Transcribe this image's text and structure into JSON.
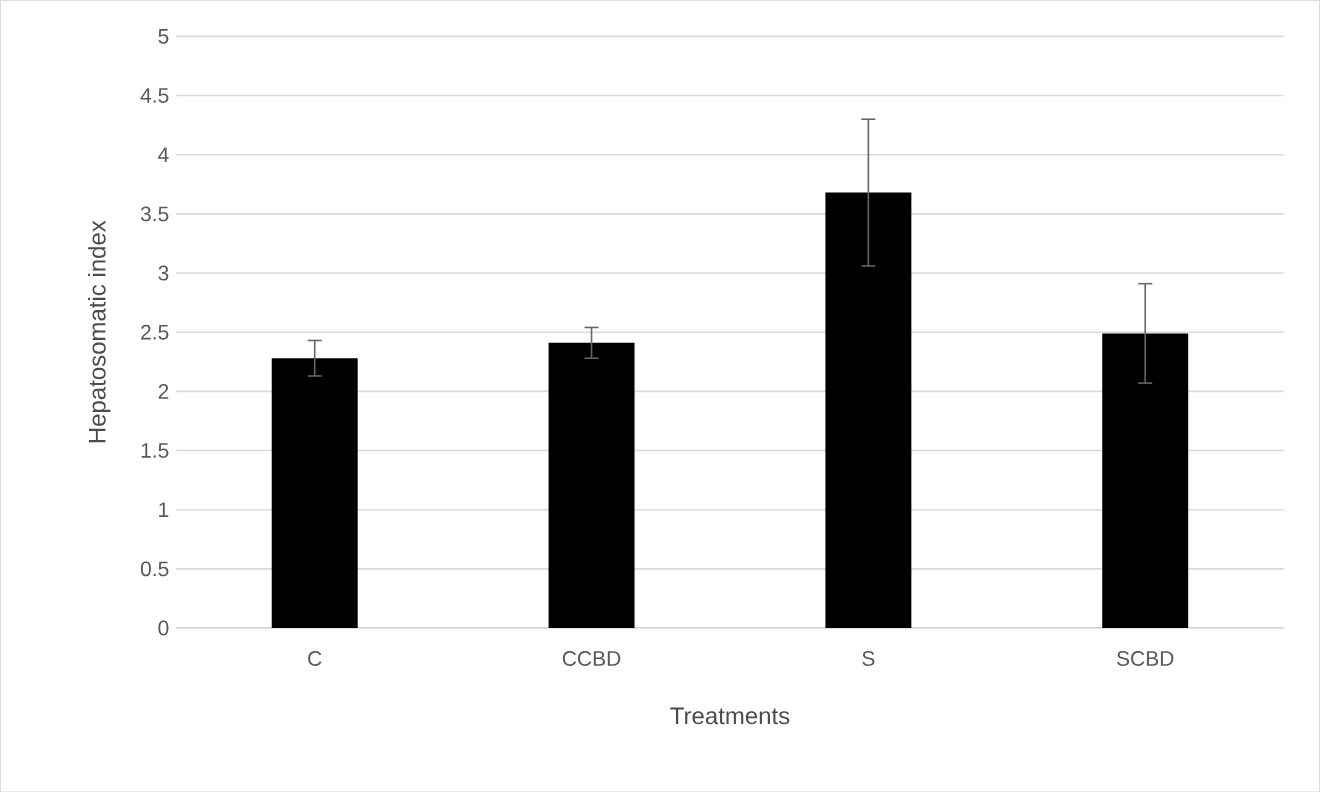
{
  "chart_data": {
    "type": "bar",
    "xlabel": "Treatments",
    "ylabel": "Hepatosomatic index",
    "categories": [
      "C",
      "CCBD",
      "S",
      "SCBD"
    ],
    "values": [
      2.28,
      2.41,
      3.68,
      2.49
    ],
    "errors": [
      0.15,
      0.13,
      0.62,
      0.42
    ],
    "color": "#000000",
    "ylim": [
      0,
      5
    ],
    "yticks": [
      0,
      0.5,
      1,
      1.5,
      2,
      2.5,
      3,
      3.5,
      4,
      4.5,
      5
    ],
    "grid": "y"
  }
}
